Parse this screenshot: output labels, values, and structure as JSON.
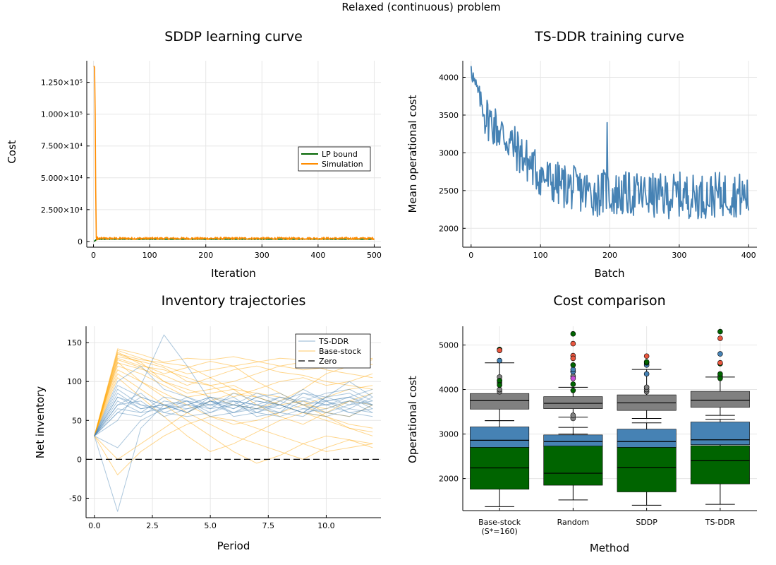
{
  "suptitle": "Relaxed (continuous) problem",
  "chart_data": [
    {
      "type": "line",
      "title": "SDDP learning curve",
      "xlabel": "Iteration",
      "ylabel": "Cost",
      "xlim": [
        -12,
        512
      ],
      "ylim": [
        -4500,
        142000
      ],
      "xticks": [
        0,
        100,
        200,
        300,
        400,
        500
      ],
      "yticks": [
        {
          "value": 0,
          "label": "0"
        },
        {
          "value": 25000,
          "label": "2.500×10⁴"
        },
        {
          "value": 50000,
          "label": "5.000×10⁴"
        },
        {
          "value": 75000,
          "label": "7.500×10⁴"
        },
        {
          "value": 100000,
          "label": "1.000×10⁵"
        },
        {
          "value": 125000,
          "label": "1.250×10⁵"
        }
      ],
      "grid": true,
      "legend_position": "right",
      "series": [
        {
          "name": "LP bound",
          "color": "#006400",
          "x": [
            1,
            2,
            3,
            4,
            5,
            6,
            8,
            10,
            500
          ],
          "y": [
            0,
            300,
            700,
            1100,
            1400,
            1600,
            1750,
            1800,
            1800
          ]
        },
        {
          "name": "Simulation",
          "color": "#FF8C00",
          "x": [
            1,
            2,
            3,
            4,
            5,
            6,
            7,
            8,
            10,
            500
          ],
          "y": [
            138000,
            136000,
            100000,
            40000,
            3000,
            1200,
            3600,
            1500,
            2800,
            2400
          ]
        }
      ]
    },
    {
      "type": "line",
      "title": "TS-DDR training curve",
      "xlabel": "Batch",
      "ylabel": "Mean operational cost",
      "xlim": [
        -12,
        412
      ],
      "ylim": [
        1750,
        4220
      ],
      "xticks": [
        0,
        100,
        200,
        300,
        400
      ],
      "yticks": [
        2000,
        2500,
        3000,
        3500,
        4000
      ],
      "grid": true,
      "series": [
        {
          "color": "#4682B4",
          "x": [
            0,
            5,
            10,
            20,
            40,
            60,
            80,
            100,
            120,
            140,
            160,
            180,
            195,
            200,
            220,
            240,
            260,
            280,
            300,
            320,
            340,
            360,
            380,
            400
          ],
          "y": [
            4150,
            3900,
            3800,
            3500,
            3300,
            3100,
            2900,
            2700,
            2600,
            2550,
            2500,
            2450,
            2500,
            2450,
            2450,
            2450,
            2430,
            2420,
            2450,
            2420,
            2430,
            2450,
            2450,
            2420
          ]
        }
      ]
    },
    {
      "type": "line",
      "title": "Inventory trajectories",
      "xlabel": "Period",
      "ylabel": "Net inventory",
      "xlim": [
        -0.36,
        12.36
      ],
      "ylim": [
        -75,
        171
      ],
      "xticks": [
        {
          "value": 0,
          "label": "0.0"
        },
        {
          "value": 2.5,
          "label": "2.5"
        },
        {
          "value": 5,
          "label": "5.0"
        },
        {
          "value": 7.5,
          "label": "7.5"
        },
        {
          "value": 10,
          "label": "10.0"
        }
      ],
      "yticks": [
        -50,
        0,
        50,
        100,
        150
      ],
      "grid": true,
      "legend_position": "top-right",
      "x": [
        0,
        1,
        2,
        3,
        4,
        5,
        6,
        7,
        8,
        9,
        10,
        11,
        12
      ],
      "series": [
        {
          "name": "TS-DDR",
          "color": "#4682B4",
          "trajectories": [
            [
              30,
              80,
              65,
              70,
              75,
              60,
              70,
              65,
              80,
              70,
              75,
              80,
              70
            ],
            [
              30,
              -67,
              40,
              70,
              60,
              75,
              65,
              80,
              70,
              60,
              55,
              65,
              60
            ],
            [
              30,
              75,
              60,
              65,
              70,
              80,
              55,
              60,
              70,
              90,
              75,
              60,
              65
            ],
            [
              30,
              90,
              70,
              60,
              55,
              60,
              75,
              70,
              65,
              80,
              70,
              75,
              70
            ],
            [
              30,
              60,
              80,
              70,
              65,
              70,
              60,
              75,
              70,
              60,
              80,
              85,
              70
            ],
            [
              30,
              100,
              120,
              90,
              80,
              65,
              70,
              60,
              75,
              85,
              80,
              70,
              75
            ],
            [
              30,
              50,
              95,
              160,
              120,
              75,
              60,
              65,
              70,
              60,
              80,
              100,
              80
            ],
            [
              30,
              15,
              50,
              65,
              75,
              70,
              80,
              60,
              55,
              65,
              70,
              60,
              55
            ],
            [
              30,
              85,
              65,
              70,
              60,
              80,
              75,
              70,
              60,
              55,
              75,
              80,
              90
            ],
            [
              30,
              70,
              75,
              55,
              65,
              75,
              70,
              85,
              75,
              65,
              60,
              70,
              85
            ],
            [
              30,
              65,
              60,
              80,
              75,
              55,
              60,
              70,
              80,
              75,
              85,
              90,
              75
            ],
            [
              30,
              80,
              70,
              65,
              80,
              70,
              75,
              55,
              60,
              85,
              75,
              65,
              80
            ],
            [
              30,
              60,
              55,
              75,
              70,
              65,
              85,
              75,
              70,
              60,
              65,
              75,
              60
            ],
            [
              30,
              95,
              80,
              70,
              60,
              75,
              65,
              80,
              85,
              70,
              60,
              55,
              70
            ],
            [
              30,
              70,
              85,
              60,
              70,
              80,
              70,
              65,
              60,
              75,
              70,
              80,
              65
            ]
          ]
        },
        {
          "name": "Base-stock",
          "color": "#FFA500",
          "trajectories": [
            [
              30,
              140,
              130,
              120,
              110,
              115,
              120,
              125,
              130,
              128,
              120,
              118,
              122
            ],
            [
              30,
              135,
              125,
              100,
              85,
              90,
              95,
              80,
              70,
              75,
              60,
              55,
              70
            ],
            [
              30,
              130,
              120,
              115,
              105,
              95,
              100,
              110,
              120,
              125,
              115,
              110,
              105
            ],
            [
              30,
              125,
              100,
              80,
              60,
              45,
              30,
              20,
              10,
              0,
              15,
              25,
              20
            ],
            [
              30,
              138,
              122,
              110,
              118,
              126,
              120,
              100,
              85,
              70,
              55,
              45,
              40
            ],
            [
              30,
              128,
              118,
              100,
              90,
              80,
              70,
              65,
              75,
              90,
              110,
              120,
              128
            ],
            [
              30,
              142,
              135,
              125,
              130,
              128,
              132,
              126,
              120,
              115,
              118,
              124,
              130
            ],
            [
              30,
              120,
              110,
              95,
              80,
              85,
              90,
              70,
              55,
              45,
              60,
              75,
              85
            ],
            [
              30,
              132,
              126,
              118,
              100,
              95,
              80,
              90,
              100,
              105,
              95,
              100,
              110
            ],
            [
              30,
              136,
              128,
              124,
              120,
              105,
              90,
              85,
              80,
              70,
              65,
              75,
              70
            ],
            [
              30,
              124,
              116,
              108,
              95,
              105,
              115,
              120,
              112,
              108,
              100,
              95,
              90
            ],
            [
              30,
              0,
              20,
              40,
              60,
              75,
              85,
              80,
              70,
              60,
              50,
              40,
              35
            ],
            [
              30,
              -20,
              10,
              30,
              45,
              55,
              50,
              40,
              30,
              20,
              10,
              15,
              20
            ],
            [
              30,
              110,
              90,
              70,
              50,
              30,
              10,
              -5,
              5,
              20,
              30,
              25,
              15
            ],
            [
              30,
              115,
              100,
              85,
              70,
              55,
              45,
              50,
              60,
              70,
              80,
              90,
              95
            ],
            [
              30,
              105,
              80,
              55,
              30,
              10,
              20,
              35,
              50,
              60,
              55,
              40,
              30
            ]
          ]
        },
        {
          "name": "Zero",
          "color": "#000000",
          "x": [
            -0.36,
            12.36
          ],
          "y": [
            0,
            0
          ]
        }
      ]
    },
    {
      "type": "box",
      "title": "Cost comparison",
      "xlabel": "Method",
      "ylabel": "Operational cost",
      "ylim": [
        1280,
        5420
      ],
      "yticks": [
        2000,
        3000,
        4000,
        5000
      ],
      "grid": true,
      "categories": [
        "Base-stock\n(S*=160)",
        "Random",
        "SDDP",
        "TS-DDR"
      ],
      "series": [
        {
          "color": "#808080",
          "boxes": [
            {
              "whislo": 3300,
              "q1": 3560,
              "med": 3750,
              "q3": 3910,
              "whishi": 4600,
              "outliers": [
                3950,
                4000,
                4150,
                4200,
                4280
              ]
            },
            {
              "whislo": 3380,
              "q1": 3570,
              "med": 3690,
              "q3": 3840,
              "whishi": 4050,
              "outliers": [
                3350,
                3420,
                4300,
                4400
              ]
            },
            {
              "whislo": 3350,
              "q1": 3530,
              "med": 3700,
              "q3": 3880,
              "whishi": 4450,
              "outliers": [
                3950,
                4000,
                4050
              ]
            },
            {
              "whislo": 3420,
              "q1": 3600,
              "med": 3760,
              "q3": 3960,
              "whishi": 4280,
              "outliers": [
                4300
              ]
            }
          ]
        },
        {
          "color": "#4682B4",
          "boxes": [
            {
              "whislo": 2480,
              "q1": 2700,
              "med": 2860,
              "q3": 3160,
              "whishi": 3300,
              "outliers": [
                4650
              ]
            },
            {
              "whislo": 2520,
              "q1": 2720,
              "med": 2830,
              "q3": 2980,
              "whishi": 3150,
              "outliers": [
                4400,
                4450
              ]
            },
            {
              "whislo": 2500,
              "q1": 2700,
              "med": 2830,
              "q3": 3110,
              "whishi": 3250,
              "outliers": [
                4350,
                4550
              ]
            },
            {
              "whislo": 2500,
              "q1": 2760,
              "med": 2870,
              "q3": 3270,
              "whishi": 3330,
              "outliers": [
                4800
              ]
            }
          ]
        },
        {
          "color": "#006400",
          "boxes": [
            {
              "whislo": 1370,
              "q1": 1760,
              "med": 2240,
              "q3": 2700,
              "whishi": 3000,
              "outliers": [
                4880,
                4900,
                4200,
                4100
              ]
            },
            {
              "whislo": 1520,
              "q1": 1850,
              "med": 2120,
              "q3": 2730,
              "whishi": 3000,
              "outliers": [
                5250,
                4550,
                3980,
                4120
              ]
            },
            {
              "whislo": 1400,
              "q1": 1700,
              "med": 2250,
              "q3": 2700,
              "whishi": 3000,
              "outliers": [
                4600,
                4620
              ]
            },
            {
              "whislo": 1420,
              "q1": 1880,
              "med": 2400,
              "q3": 2740,
              "whishi": 3000,
              "outliers": [
                5300,
                4580,
                4350,
                4250
              ]
            }
          ]
        },
        {
          "color": "#E9573F",
          "points": [
            [
              0,
              4880
            ],
            [
              1,
              5030
            ],
            [
              1,
              4760
            ],
            [
              1,
              4700
            ],
            [
              2,
              4750
            ],
            [
              3,
              5150
            ],
            [
              3,
              4600
            ]
          ]
        },
        {
          "color": "#C94FD8",
          "points": [
            [
              1,
              4250
            ]
          ]
        }
      ]
    }
  ]
}
